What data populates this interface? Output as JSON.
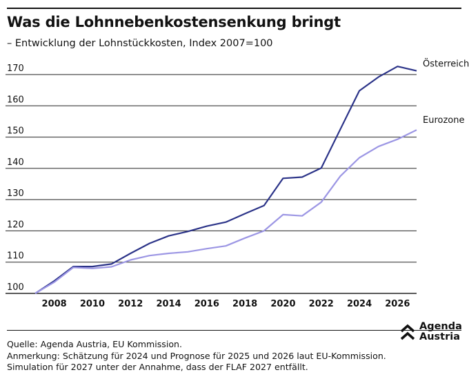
{
  "header": {
    "title": "Was die Lohnnebenkostensenkung bringt",
    "subtitle": "– Entwicklung der Lohnstückkosten, Index 2007=100"
  },
  "footer": {
    "source": "Quelle: Agenda Austria, EU Kommission.",
    "note1": "Anmerkung: Schätzung für 2024 und Prognose für 2025 und 2026 laut EU-Kommission.",
    "note2": "Simulation für 2027 unter der Annahme, dass der FLAF 2027 entfällt."
  },
  "logo": {
    "line1": "Agenda",
    "line2": "Austria",
    "icon": "double-chevron-up-icon"
  },
  "colors": {
    "austria": "#2b3388",
    "eurozone": "#9c96e4",
    "grid": "#222222",
    "text": "#111111"
  },
  "chart_data": {
    "type": "line",
    "title": "Was die Lohnnebenkostensenkung bringt",
    "subtitle": "– Entwicklung der Lohnstückkosten, Index 2007=100",
    "xlabel": "",
    "ylabel": "",
    "xlim": [
      2007,
      2027
    ],
    "ylim": [
      100,
      170
    ],
    "yticks": [
      100,
      110,
      120,
      130,
      140,
      150,
      160,
      170
    ],
    "xticks": [
      2008,
      2010,
      2012,
      2014,
      2016,
      2018,
      2020,
      2022,
      2024,
      2026
    ],
    "grid": "horizontal",
    "legend": "line-end labels",
    "x": [
      2007,
      2008,
      2009,
      2010,
      2011,
      2012,
      2013,
      2014,
      2015,
      2016,
      2017,
      2018,
      2019,
      2020,
      2021,
      2022,
      2023,
      2024,
      2025,
      2026,
      2027
    ],
    "series": [
      {
        "name": "Österreich",
        "color": "#2b3388",
        "values": [
          100,
          104,
          108.6,
          108.6,
          109.4,
          112.8,
          116,
          118.4,
          119.8,
          121.5,
          122.8,
          125.5,
          128.1,
          136.8,
          137.2,
          140.1,
          152.5,
          164.8,
          169.2,
          172.6,
          171.2
        ]
      },
      {
        "name": "Eurozone",
        "color": "#9c96e4",
        "values": [
          100,
          103.6,
          108.3,
          108,
          108.5,
          110.7,
          112.1,
          112.8,
          113.3,
          114.3,
          115.2,
          117.7,
          120,
          125.2,
          124.8,
          129.2,
          137.5,
          143.4,
          147,
          149.3,
          152.3
        ]
      }
    ]
  }
}
